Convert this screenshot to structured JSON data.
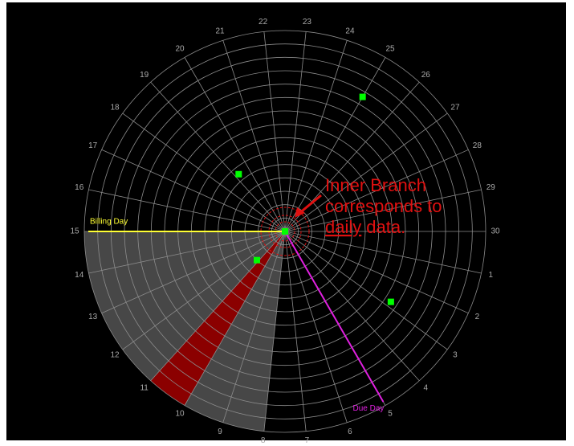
{
  "chart_data": {
    "type": "polar",
    "anglelim": [
      0,
      30
    ],
    "angular_ticks": [
      30,
      1,
      2,
      3,
      4,
      5,
      6,
      7,
      8,
      9,
      10,
      11,
      12,
      13,
      14,
      15,
      16,
      17,
      18,
      19,
      20,
      21,
      22,
      23,
      24,
      25,
      26,
      27,
      28,
      29
    ],
    "rlim": [
      0,
      15
    ],
    "rticks": [
      1,
      2,
      3,
      4,
      5,
      6,
      7,
      8,
      9,
      10,
      11,
      12,
      13,
      14,
      15
    ],
    "grid_color": "#8c8c8c",
    "shaded_range": [
      8,
      15
    ],
    "shaded_color": "#474747",
    "highlight_range": [
      10,
      11
    ],
    "highlight_color": "#8b0000",
    "lines": [
      {
        "label": "Billing Day",
        "day": 15,
        "color": "#ffff33"
      },
      {
        "label": "Due Day",
        "day": 5,
        "color": "#e020e0"
      }
    ],
    "points": {
      "color": "#00ff00",
      "theta": [
        25,
        19.25,
        2.8,
        11.2,
        0
      ],
      "r": [
        11.6,
        5.5,
        9.5,
        3,
        0
      ]
    },
    "annotation": {
      "lines": [
        "Inner Branch",
        "corresponds to"
      ],
      "underlined": "daily",
      "tail": "data.",
      "color": "#e01010"
    }
  }
}
